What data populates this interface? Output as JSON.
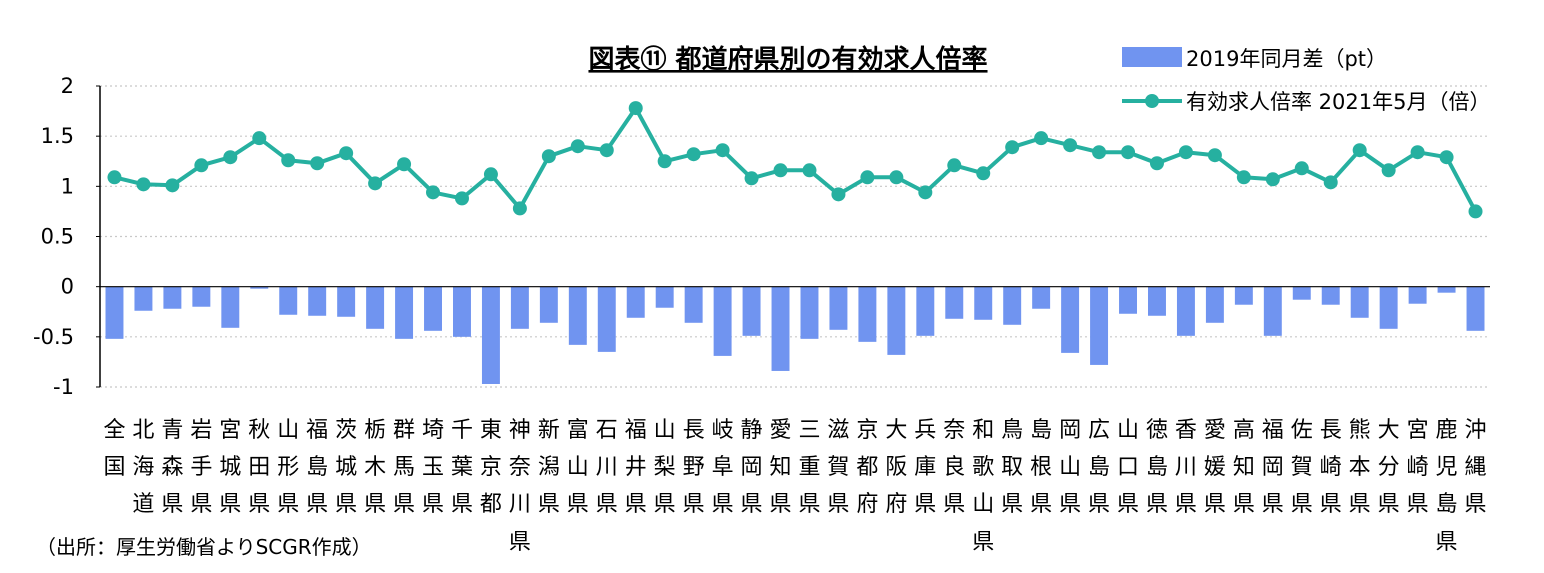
{
  "chart_data": {
    "type": "bar+line",
    "title": "図表⑪ 都道府県別の有効求人倍率",
    "categories": [
      "全国",
      "北海道",
      "青森県",
      "岩手県",
      "宮城県",
      "秋田県",
      "山形県",
      "福島県",
      "茨城県",
      "栃木県",
      "群馬県",
      "埼玉県",
      "千葉県",
      "東京都",
      "神奈川県",
      "新潟県",
      "富山県",
      "石川県",
      "福井県",
      "山梨県",
      "長野県",
      "岐阜県",
      "静岡県",
      "愛知県",
      "三重県",
      "滋賀県",
      "京都府",
      "大阪府",
      "兵庫県",
      "奈良県",
      "和歌山県",
      "鳥取県",
      "島根県",
      "岡山県",
      "広島県",
      "山口県",
      "徳島県",
      "香川県",
      "愛媛県",
      "高知県",
      "福岡県",
      "佐賀県",
      "長崎県",
      "熊本県",
      "大分県",
      "宮崎県",
      "鹿児島県",
      "沖縄県"
    ],
    "series": [
      {
        "name": "2019年同月差（pt）",
        "type": "bar",
        "color": "#7094f0",
        "values": [
          -0.52,
          -0.24,
          -0.22,
          -0.2,
          -0.41,
          -0.02,
          -0.28,
          -0.29,
          -0.3,
          -0.42,
          -0.52,
          -0.44,
          -0.5,
          -0.97,
          -0.42,
          -0.36,
          -0.58,
          -0.65,
          -0.31,
          -0.21,
          -0.36,
          -0.69,
          -0.49,
          -0.84,
          -0.52,
          -0.43,
          -0.55,
          -0.68,
          -0.49,
          -0.32,
          -0.33,
          -0.38,
          -0.22,
          -0.66,
          -0.78,
          -0.27,
          -0.29,
          -0.49,
          -0.36,
          -0.18,
          -0.49,
          -0.13,
          -0.18,
          -0.31,
          -0.42,
          -0.17,
          -0.06,
          -0.44
        ]
      },
      {
        "name": "有効求人倍率 2021年5月（倍）",
        "type": "line",
        "color": "#26b0a0",
        "values": [
          1.09,
          1.02,
          1.01,
          1.21,
          1.29,
          1.48,
          1.26,
          1.23,
          1.33,
          1.03,
          1.22,
          0.94,
          0.88,
          1.12,
          0.78,
          1.3,
          1.4,
          1.36,
          1.78,
          1.25,
          1.32,
          1.36,
          1.08,
          1.16,
          1.16,
          0.92,
          1.09,
          1.09,
          0.94,
          1.21,
          1.13,
          1.39,
          1.48,
          1.41,
          1.34,
          1.34,
          1.23,
          1.34,
          1.31,
          1.09,
          1.07,
          1.18,
          1.04,
          1.36,
          1.16,
          1.34,
          1.29,
          0.75
        ]
      }
    ],
    "yticks": [
      "2",
      "1.5",
      "1",
      "0.5",
      "0",
      "-0.5",
      "-1"
    ],
    "ylim": [
      -1,
      2
    ],
    "grid": true,
    "legend_position": "top-right"
  },
  "source": "（出所：厚生労働省よりSCGR作成）"
}
